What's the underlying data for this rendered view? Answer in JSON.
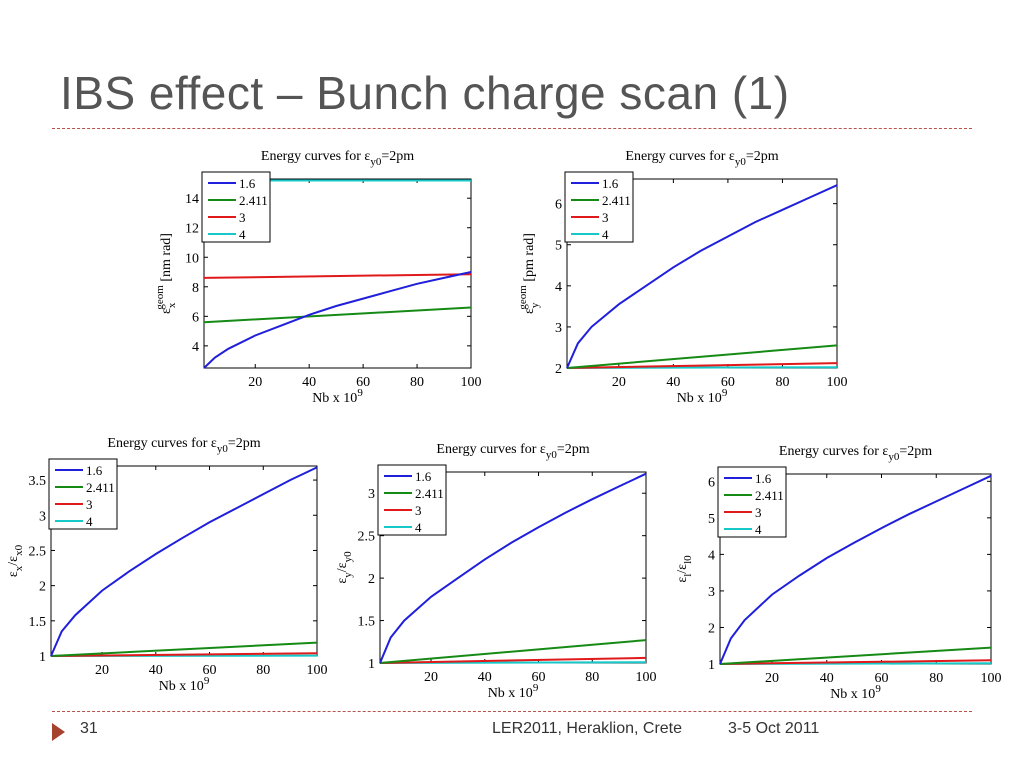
{
  "slide": {
    "title": "IBS effect – Bunch charge scan (1)",
    "footer": {
      "page": "31",
      "venue": "LER2011, Heraklion, Crete",
      "date": "3-5 Oct 2011"
    }
  },
  "colors": {
    "rule": "#b5544b",
    "footer_arrow": "#a5432f",
    "series": [
      "#1f1fdc",
      "#158a15",
      "#e01a1a",
      "#17c8c8"
    ]
  },
  "chart_data": [
    {
      "type": "line",
      "title_prefix": "Energy curves for ε",
      "title_sub": "y0",
      "title_suffix": "=2pm",
      "xlabel": "Nb x 10",
      "xlabel_sup": "9",
      "ylabel": "ε",
      "ylabel_sub": "x",
      "ylabel_sup": "geom",
      "ylabel_unit": " [nm rad]",
      "xlim": [
        1,
        100
      ],
      "ylim": [
        2.5,
        15.3
      ],
      "xticks": [
        20,
        40,
        60,
        80,
        100
      ],
      "yticks": [
        4,
        6,
        8,
        10,
        12,
        14
      ],
      "legend": "top-left",
      "series": [
        {
          "name": "1.6",
          "x": [
            1,
            5,
            10,
            20,
            30,
            40,
            50,
            60,
            70,
            80,
            90,
            100
          ],
          "y": [
            2.5,
            3.2,
            3.8,
            4.7,
            5.4,
            6.1,
            6.7,
            7.2,
            7.7,
            8.2,
            8.6,
            9.0
          ]
        },
        {
          "name": "2.411",
          "x": [
            1,
            100
          ],
          "y": [
            5.6,
            6.6
          ]
        },
        {
          "name": "3",
          "x": [
            1,
            100
          ],
          "y": [
            8.6,
            8.85
          ]
        },
        {
          "name": "4",
          "x": [
            1,
            100
          ],
          "y": [
            15.2,
            15.2
          ]
        }
      ]
    },
    {
      "type": "line",
      "title_prefix": "Energy curves for ε",
      "title_sub": "y0",
      "title_suffix": "=2pm",
      "xlabel": "Nb x 10",
      "xlabel_sup": "9",
      "ylabel": "ε",
      "ylabel_sub": "y",
      "ylabel_sup": "geom",
      "ylabel_unit": " [pm rad]",
      "xlim": [
        1,
        100
      ],
      "ylim": [
        2,
        6.6
      ],
      "xticks": [
        20,
        40,
        60,
        80,
        100
      ],
      "yticks": [
        2,
        3,
        4,
        5,
        6
      ],
      "legend": "top-left",
      "series": [
        {
          "name": "1.6",
          "x": [
            1,
            5,
            10,
            20,
            30,
            40,
            50,
            60,
            70,
            80,
            90,
            100
          ],
          "y": [
            2.0,
            2.6,
            3.0,
            3.55,
            4.0,
            4.45,
            4.85,
            5.2,
            5.55,
            5.85,
            6.15,
            6.45
          ]
        },
        {
          "name": "2.411",
          "x": [
            1,
            100
          ],
          "y": [
            2.0,
            2.55
          ]
        },
        {
          "name": "3",
          "x": [
            1,
            100
          ],
          "y": [
            2.0,
            2.12
          ]
        },
        {
          "name": "4",
          "x": [
            1,
            100
          ],
          "y": [
            2.0,
            2.02
          ]
        }
      ]
    },
    {
      "type": "line",
      "title_prefix": "Energy curves for ε",
      "title_sub": "y0",
      "title_suffix": "=2pm",
      "xlabel": "Nb x 10",
      "xlabel_sup": "9",
      "ylabel": "ε",
      "ylabel_sub": "x",
      "ylabel_mid": "/ε",
      "ylabel_sub2": "x0",
      "xlim": [
        1,
        100
      ],
      "ylim": [
        1,
        3.7
      ],
      "xticks": [
        20,
        40,
        60,
        80,
        100
      ],
      "yticks": [
        1,
        1.5,
        2,
        2.5,
        3,
        3.5
      ],
      "legend": "top-left",
      "series": [
        {
          "name": "1.6",
          "x": [
            1,
            5,
            10,
            20,
            30,
            40,
            50,
            60,
            70,
            80,
            90,
            100
          ],
          "y": [
            1.0,
            1.35,
            1.58,
            1.93,
            2.2,
            2.45,
            2.68,
            2.9,
            3.1,
            3.3,
            3.5,
            3.68
          ]
        },
        {
          "name": "2.411",
          "x": [
            1,
            100
          ],
          "y": [
            1.0,
            1.19
          ]
        },
        {
          "name": "3",
          "x": [
            1,
            100
          ],
          "y": [
            1.0,
            1.04
          ]
        },
        {
          "name": "4",
          "x": [
            1,
            100
          ],
          "y": [
            1.0,
            1.005
          ]
        }
      ]
    },
    {
      "type": "line",
      "title_prefix": "Energy curves for ε",
      "title_sub": "y0",
      "title_suffix": "=2pm",
      "xlabel": "Nb x 10",
      "xlabel_sup": "9",
      "ylabel": "ε",
      "ylabel_sub": "y",
      "ylabel_mid": "/ε",
      "ylabel_sub2": "y0",
      "xlim": [
        1,
        100
      ],
      "ylim": [
        1,
        3.25
      ],
      "xticks": [
        20,
        40,
        60,
        80,
        100
      ],
      "yticks": [
        1,
        1.5,
        2,
        2.5,
        3
      ],
      "legend": "top-left",
      "series": [
        {
          "name": "1.6",
          "x": [
            1,
            5,
            10,
            20,
            30,
            40,
            50,
            60,
            70,
            80,
            90,
            100
          ],
          "y": [
            1.0,
            1.3,
            1.5,
            1.78,
            2.0,
            2.22,
            2.42,
            2.6,
            2.77,
            2.93,
            3.08,
            3.23
          ]
        },
        {
          "name": "2.411",
          "x": [
            1,
            100
          ],
          "y": [
            1.0,
            1.27
          ]
        },
        {
          "name": "3",
          "x": [
            1,
            100
          ],
          "y": [
            1.0,
            1.06
          ]
        },
        {
          "name": "4",
          "x": [
            1,
            100
          ],
          "y": [
            1.0,
            1.01
          ]
        }
      ]
    },
    {
      "type": "line",
      "title_prefix": "Energy curves for ε",
      "title_sub": "y0",
      "title_suffix": "=2pm",
      "xlabel": "Nb x 10",
      "xlabel_sup": "9",
      "ylabel": "ε",
      "ylabel_sub": "l",
      "ylabel_mid": "/ε",
      "ylabel_sub2": "l0",
      "xlim": [
        1,
        100
      ],
      "ylim": [
        1,
        6.2
      ],
      "xticks": [
        20,
        40,
        60,
        80,
        100
      ],
      "yticks": [
        1,
        2,
        3,
        4,
        5,
        6
      ],
      "legend": "top-left",
      "series": [
        {
          "name": "1.6",
          "x": [
            1,
            5,
            10,
            20,
            30,
            40,
            50,
            60,
            70,
            80,
            90,
            100
          ],
          "y": [
            1.0,
            1.7,
            2.2,
            2.9,
            3.42,
            3.9,
            4.32,
            4.72,
            5.1,
            5.45,
            5.8,
            6.15
          ]
        },
        {
          "name": "2.411",
          "x": [
            1,
            100
          ],
          "y": [
            1.0,
            1.45
          ]
        },
        {
          "name": "3",
          "x": [
            1,
            100
          ],
          "y": [
            1.0,
            1.1
          ]
        },
        {
          "name": "4",
          "x": [
            1,
            100
          ],
          "y": [
            1.0,
            1.02
          ]
        }
      ]
    }
  ]
}
